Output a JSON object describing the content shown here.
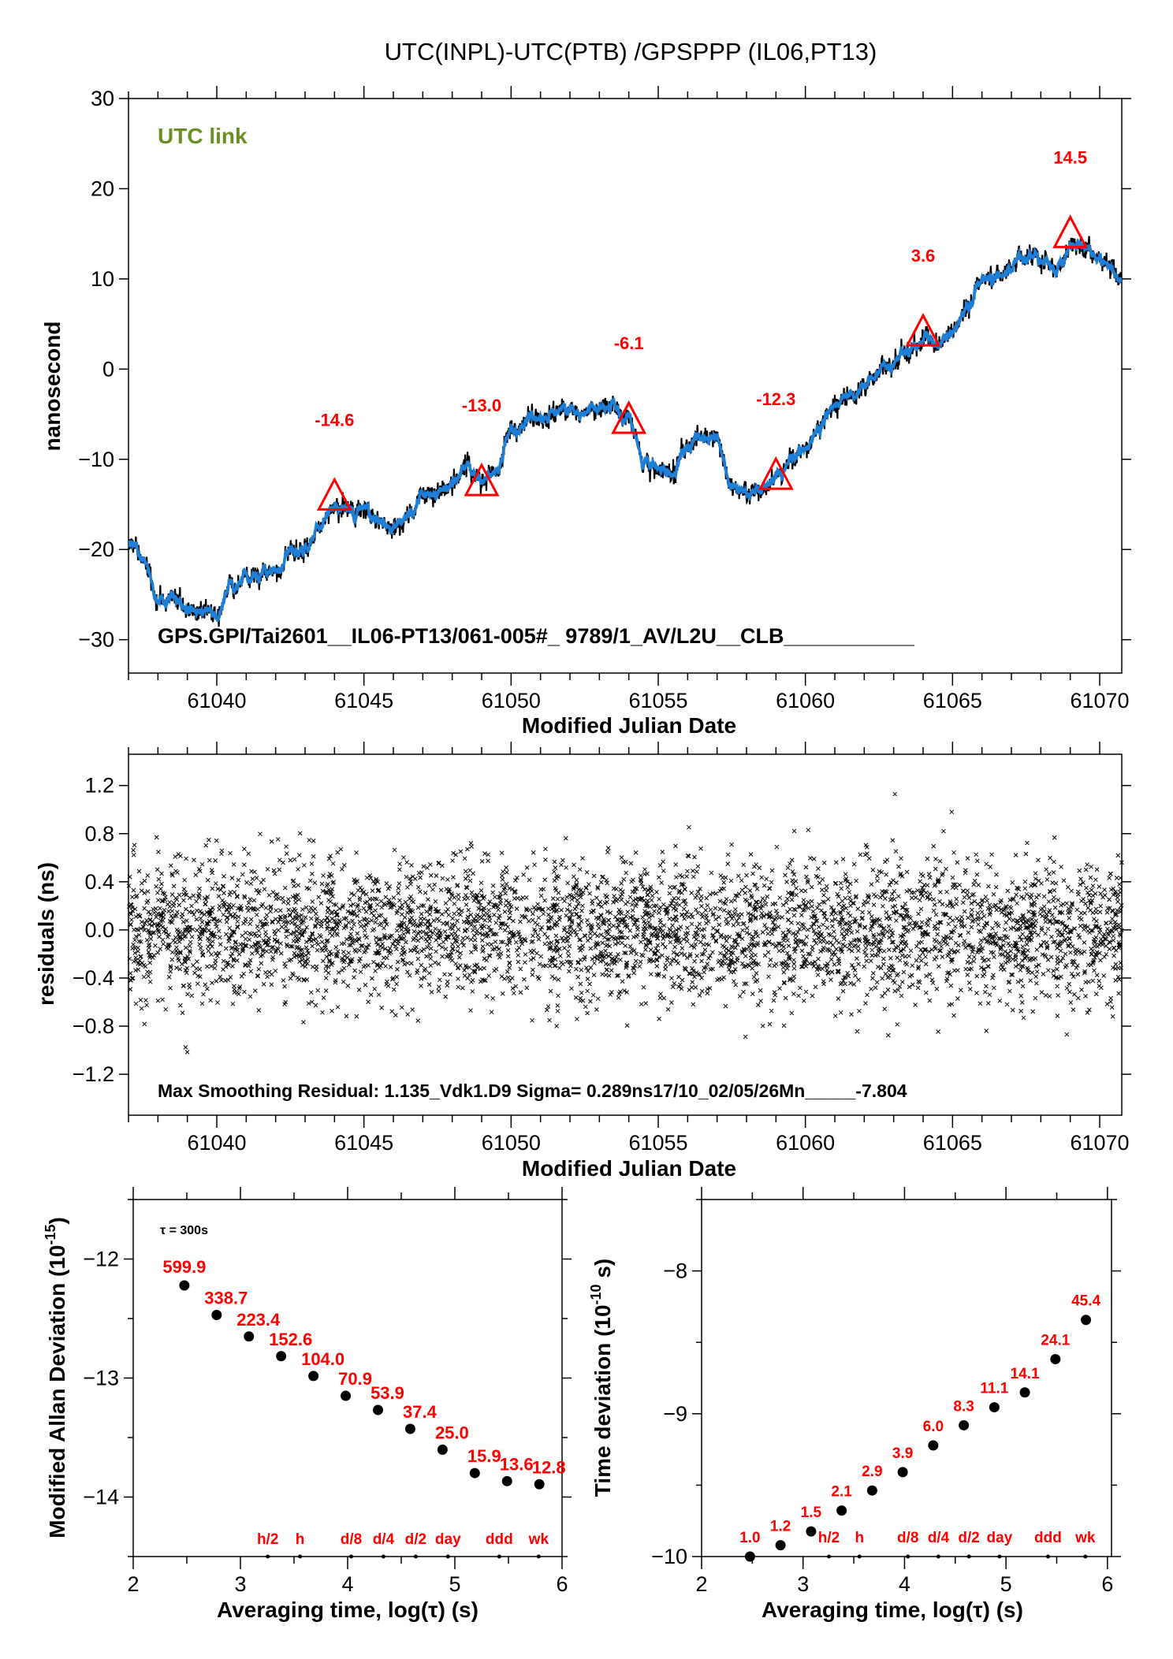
{
  "title": "UTC(INPL)-UTC(PTB)  /GPSPPP  (IL06,PT13)",
  "colors": {
    "series": "#1e7fd8",
    "raw": "#000000",
    "marker": "#ff0000",
    "legend_green": "#6b8e23"
  },
  "chart_data": [
    {
      "type": "line",
      "legend": "UTC link",
      "ylabel": "nanosecond",
      "xlabel": "Modified Julian Date",
      "xlim": [
        61037.0,
        61070.75
      ],
      "ylim": [
        -33.7,
        30
      ],
      "xticks": [
        61040,
        61045,
        61050,
        61055,
        61060,
        61065,
        61070
      ],
      "yticks": [
        30,
        20,
        10,
        0,
        -10,
        -20,
        -30
      ],
      "annotation": "GPS.GPI/Tai2601__IL06-PT13/061-005#_  9789/1_AV/L2U__CLB___________",
      "series_points": [
        [
          61037,
          -19.5
        ],
        [
          61037.5,
          -21
        ],
        [
          61038,
          -25
        ],
        [
          61038.5,
          -25
        ],
        [
          61039,
          -27
        ],
        [
          61039.5,
          -26.5
        ],
        [
          61040,
          -27.5
        ],
        [
          61040.5,
          -24
        ],
        [
          61041,
          -23
        ],
        [
          61041.5,
          -23.5
        ],
        [
          61042,
          -22.5
        ],
        [
          61042.5,
          -20.5
        ],
        [
          61043,
          -20
        ],
        [
          61043.5,
          -17.5
        ],
        [
          61044,
          -15
        ],
        [
          61044.5,
          -16
        ],
        [
          61045,
          -15.5
        ],
        [
          61045.5,
          -16.5
        ],
        [
          61046,
          -17
        ],
        [
          61046.5,
          -16.5
        ],
        [
          61047,
          -14
        ],
        [
          61047.5,
          -13.5
        ],
        [
          61048,
          -13
        ],
        [
          61048.5,
          -11
        ],
        [
          61049,
          -12.5
        ],
        [
          61049.5,
          -11
        ],
        [
          61050,
          -6.5
        ],
        [
          61050.5,
          -5.5
        ],
        [
          61051,
          -5.5
        ],
        [
          61051.5,
          -5
        ],
        [
          61052,
          -4.2
        ],
        [
          61052.5,
          -5
        ],
        [
          61053,
          -4.5
        ],
        [
          61053.5,
          -4
        ],
        [
          61054,
          -6
        ],
        [
          61054.5,
          -10
        ],
        [
          61055,
          -11
        ],
        [
          61055.5,
          -11.5
        ],
        [
          61056,
          -8.5
        ],
        [
          61056.5,
          -7
        ],
        [
          61057,
          -7.5
        ],
        [
          61057.5,
          -13
        ],
        [
          61058,
          -14
        ],
        [
          61058.5,
          -13
        ],
        [
          61059,
          -12.3
        ],
        [
          61059.5,
          -10.5
        ],
        [
          61060,
          -8.5
        ],
        [
          61060.5,
          -6.5
        ],
        [
          61061,
          -4
        ],
        [
          61061.5,
          -3
        ],
        [
          61062,
          -2
        ],
        [
          61062.5,
          0
        ],
        [
          61063,
          0.5
        ],
        [
          61063.5,
          2
        ],
        [
          61064,
          3.5
        ],
        [
          61064.5,
          3
        ],
        [
          61065,
          3.8
        ],
        [
          61065.5,
          7
        ],
        [
          61066,
          10
        ],
        [
          61066.5,
          10.5
        ],
        [
          61067,
          11
        ],
        [
          61067.5,
          12.5
        ],
        [
          61068,
          12
        ],
        [
          61068.5,
          11
        ],
        [
          61069,
          14
        ],
        [
          61069.5,
          13.8
        ],
        [
          61070,
          12.5
        ],
        [
          61070.75,
          10.2
        ]
      ],
      "markers": [
        {
          "x": 61044,
          "y": -14.6,
          "label": "-14.6"
        },
        {
          "x": 61049,
          "y": -13.0,
          "label": "-13.0"
        },
        {
          "x": 61054,
          "y": -6.1,
          "label": "-6.1"
        },
        {
          "x": 61059,
          "y": -12.3,
          "label": "-12.3"
        },
        {
          "x": 61064,
          "y": 3.6,
          "label": "3.6"
        },
        {
          "x": 61069,
          "y": 14.5,
          "label": "14.5"
        }
      ]
    },
    {
      "type": "scatter",
      "ylabel": "residuals (ns)",
      "xlabel": "Modified Julian Date",
      "xlim": [
        61037.0,
        61070.75
      ],
      "ylim": [
        -1.54,
        1.46
      ],
      "xticks": [
        61040,
        61045,
        61050,
        61055,
        61060,
        61065,
        61070
      ],
      "yticks": [
        1.2,
        0.8,
        0.4,
        0.0,
        -0.4,
        -0.8,
        -1.2
      ],
      "sigma": 0.289,
      "max_abs": 1.135,
      "annotation": "Max Smoothing Residual: 1.135_Vdk1.D9  Sigma= 0.289ns17/10_02/05/26Mn_____-7.804"
    },
    {
      "type": "scatter",
      "note": "τ = 300s",
      "ylabel": "Modified Allan Deviation (10",
      "ylabel_exp": "-15",
      "ylabel_end": ")",
      "xlabel": "Averaging time, log(τ) (s)",
      "xlim": [
        2,
        6
      ],
      "ylim": [
        -14.5,
        -11.5
      ],
      "xticks": [
        2,
        3,
        4,
        5,
        6
      ],
      "yticks": [
        -12,
        -13,
        -14
      ],
      "x": [
        2.477,
        2.778,
        3.079,
        3.38,
        3.681,
        3.982,
        4.283,
        4.584,
        4.885,
        5.186,
        5.487,
        5.788
      ],
      "labels": [
        "599.9",
        "338.7",
        "223.4",
        "152.6",
        "104.0",
        "70.9",
        "53.9",
        "37.4",
        "25.0",
        "15.9",
        "13.6",
        "12.8"
      ],
      "values": [
        599.9,
        338.7,
        223.4,
        152.6,
        104.0,
        70.9,
        53.9,
        37.4,
        25.0,
        15.9,
        13.6,
        12.8
      ],
      "reference_marks": [
        {
          "x": 3.255,
          "label": "h/2"
        },
        {
          "x": 3.556,
          "label": "h"
        },
        {
          "x": 4.033,
          "label": "d/8"
        },
        {
          "x": 4.334,
          "label": "d/4"
        },
        {
          "x": 4.635,
          "label": "d/2"
        },
        {
          "x": 4.936,
          "label": "day"
        },
        {
          "x": 5.414,
          "label": "ddd"
        },
        {
          "x": 5.782,
          "label": "wk"
        }
      ]
    },
    {
      "type": "scatter",
      "ylabel": "Time deviation (10",
      "ylabel_exp": "-10",
      "ylabel_end": " s)",
      "xlabel": "Averaging time, log(τ) (s)",
      "xlim": [
        2,
        6.04
      ],
      "ylim": [
        -10,
        -7.5
      ],
      "xticks": [
        2,
        3,
        4,
        5,
        6
      ],
      "yticks": [
        -8,
        -9,
        -10
      ],
      "x": [
        2.477,
        2.778,
        3.079,
        3.38,
        3.681,
        3.982,
        4.283,
        4.584,
        4.885,
        5.186,
        5.487,
        5.788
      ],
      "labels": [
        "1.0",
        "1.2",
        "1.5",
        "2.1",
        "2.9",
        "3.9",
        "6.0",
        "8.3",
        "11.1",
        "14.1",
        "24.1",
        "45.4"
      ],
      "values": [
        1.0,
        1.2,
        1.5,
        2.1,
        2.9,
        3.9,
        6.0,
        8.3,
        11.1,
        14.1,
        24.1,
        45.4
      ],
      "reference_marks": [
        {
          "x": 3.255,
          "label": "h/2"
        },
        {
          "x": 3.556,
          "label": "h"
        },
        {
          "x": 4.033,
          "label": "d/8"
        },
        {
          "x": 4.334,
          "label": "d/4"
        },
        {
          "x": 4.635,
          "label": "d/2"
        },
        {
          "x": 4.936,
          "label": "day"
        },
        {
          "x": 5.414,
          "label": "ddd"
        },
        {
          "x": 5.782,
          "label": "wk"
        }
      ]
    }
  ]
}
